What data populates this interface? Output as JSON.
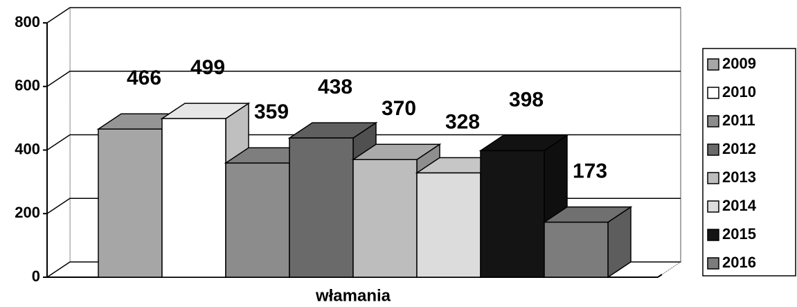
{
  "chart_data": {
    "type": "bar3d",
    "x_label": "włamania",
    "categories": [
      "włamania"
    ],
    "series": [
      {
        "name": "2009",
        "color": "#a6a6a6",
        "values": [
          466
        ]
      },
      {
        "name": "2010",
        "color": "#ffffff",
        "values": [
          499
        ]
      },
      {
        "name": "2011",
        "color": "#8c8c8c",
        "values": [
          359
        ]
      },
      {
        "name": "2012",
        "color": "#6a6a6a",
        "values": [
          438
        ]
      },
      {
        "name": "2013",
        "color": "#bdbdbd",
        "values": [
          370
        ]
      },
      {
        "name": "2014",
        "color": "#dcdcdc",
        "values": [
          328
        ]
      },
      {
        "name": "2015",
        "color": "#141414",
        "values": [
          398
        ]
      },
      {
        "name": "2016",
        "color": "#7c7c7c",
        "values": [
          173
        ]
      }
    ],
    "ylim": [
      0,
      800
    ],
    "yticks": [
      0,
      200,
      400,
      600,
      800
    ],
    "grid": true,
    "legend": "right"
  }
}
